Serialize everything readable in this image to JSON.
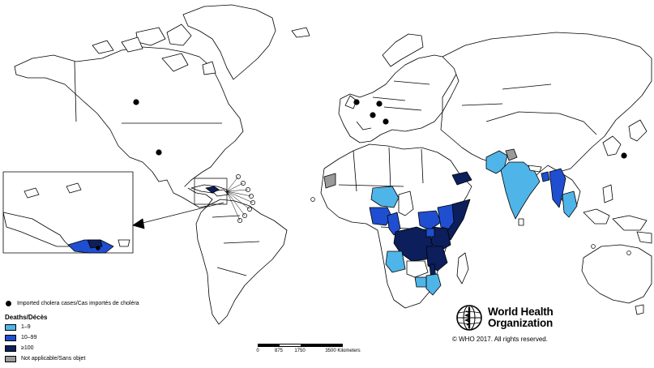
{
  "legend": {
    "imported_label": "Imported cholera cases/Cas importés de choléra",
    "deaths_title": "Deaths/Décès",
    "categories": [
      {
        "label": "1–9",
        "color": "#4fb5e8"
      },
      {
        "label": "10–99",
        "color": "#1f4fd0"
      },
      {
        "label": "≥100",
        "color": "#0c1f5c"
      },
      {
        "label": "Not applicable/Sans objet",
        "color": "#9a9a9a"
      }
    ]
  },
  "scale": {
    "labels": [
      "0",
      "875",
      "1750",
      "3500 Kilometers"
    ]
  },
  "who": {
    "name_line1": "World Health",
    "name_line2": "Organization",
    "copyright": "© WHO 2017. All rights reserved."
  },
  "colors": {
    "land_fill": "#ffffff",
    "border_stroke": "#000000"
  }
}
